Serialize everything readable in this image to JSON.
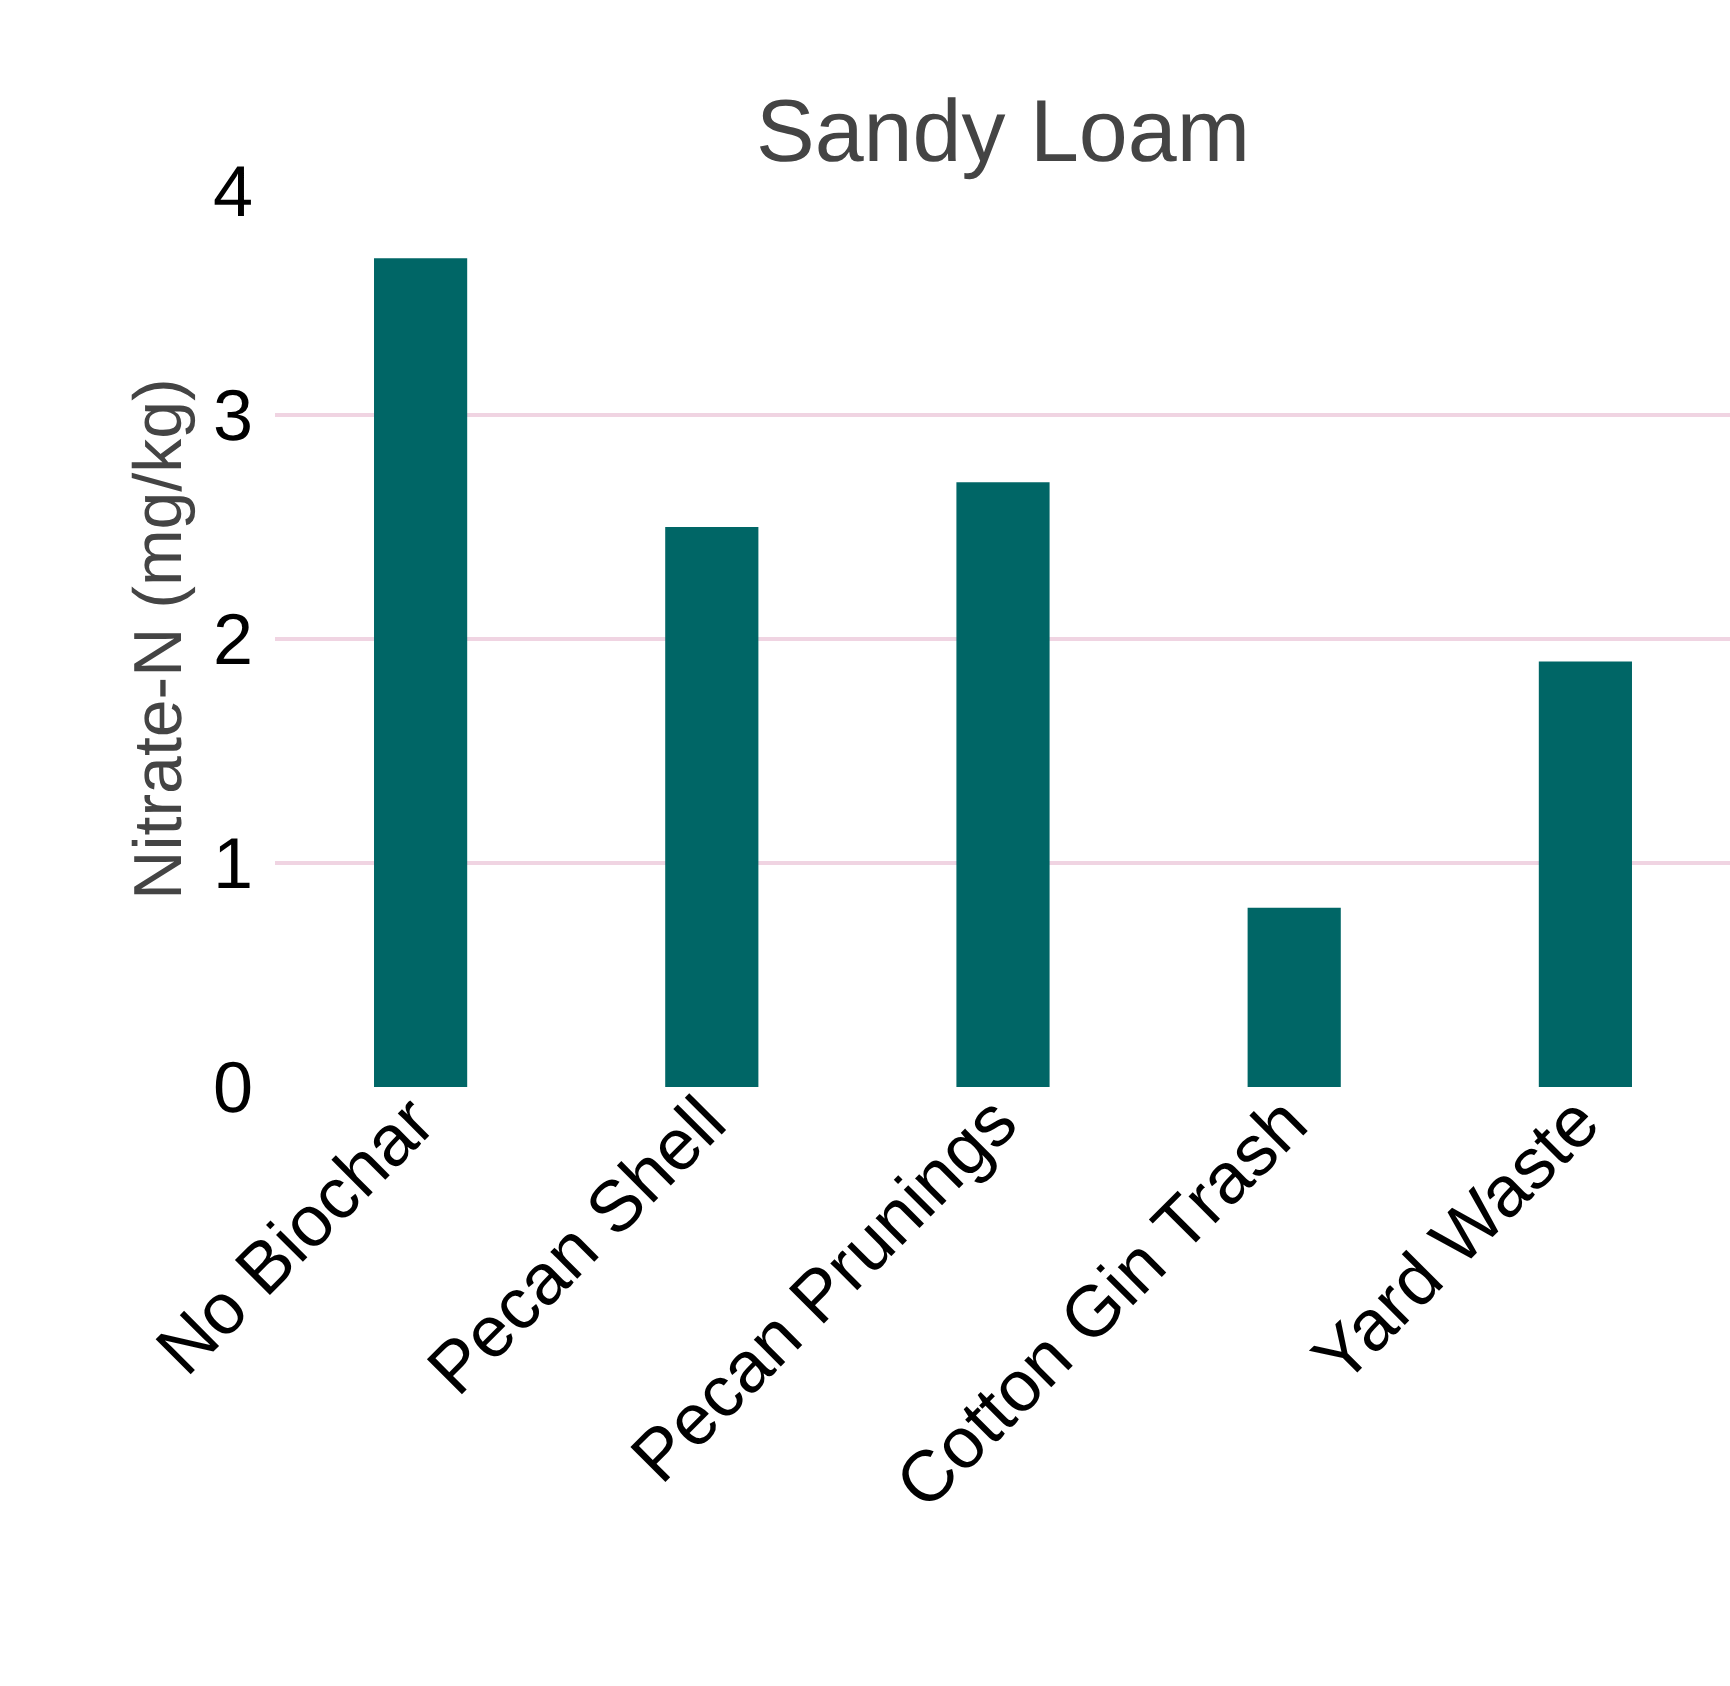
{
  "chart_data": {
    "type": "bar",
    "title": "Sandy Loam",
    "ylabel": "Nitrate-N (mg/kg)",
    "categories": [
      "No Biochar",
      "Pecan Shell",
      "Pecan Prunings",
      "Cotton Gin Trash",
      "Yard Waste"
    ],
    "values": [
      3.7,
      2.5,
      2.7,
      0.8,
      1.9
    ],
    "color": "#006666",
    "ylim": [
      0,
      4
    ],
    "yticks": [
      0,
      1,
      2,
      3,
      4
    ],
    "grid": "y"
  }
}
